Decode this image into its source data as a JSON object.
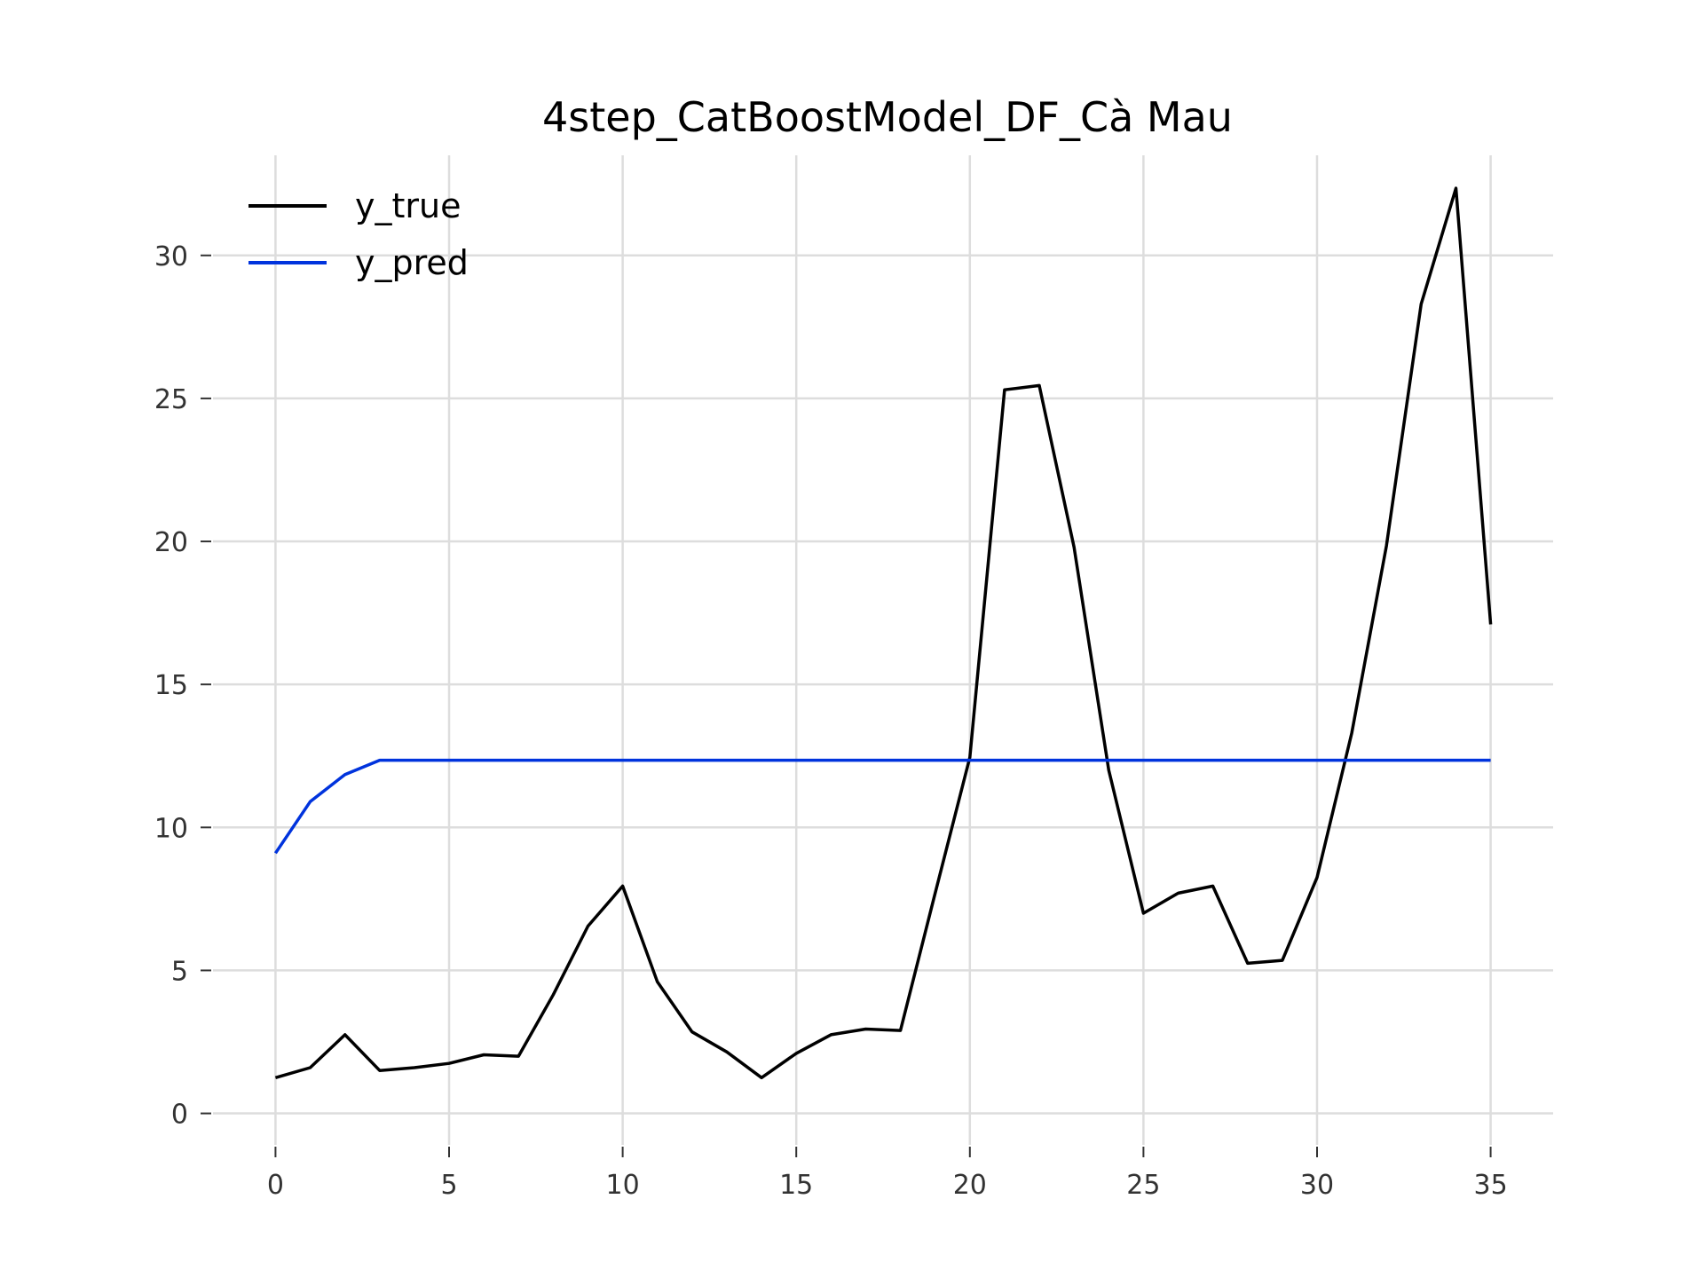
{
  "chart_data": {
    "type": "line",
    "title": "4step_CatBoostModel_DF_Cà Mau",
    "xlabel": "",
    "ylabel": "",
    "xlim": [
      -1.8,
      36.8
    ],
    "ylim": [
      -1.1,
      33.5
    ],
    "xticks": [
      0,
      5,
      10,
      15,
      20,
      25,
      30,
      35
    ],
    "yticks": [
      0,
      5,
      10,
      15,
      20,
      25,
      30
    ],
    "grid": true,
    "legend_position": "top-left",
    "x": [
      0,
      1,
      2,
      3,
      4,
      5,
      6,
      7,
      8,
      9,
      10,
      11,
      12,
      13,
      14,
      15,
      16,
      17,
      18,
      19,
      20,
      21,
      22,
      23,
      24,
      25,
      26,
      27,
      28,
      29,
      30,
      31,
      32,
      33,
      34,
      35
    ],
    "series": [
      {
        "name": "y_true",
        "color": "#000000",
        "values": [
          1.25,
          1.6,
          2.75,
          1.5,
          1.6,
          1.75,
          2.05,
          2.0,
          4.15,
          6.55,
          7.95,
          4.6,
          2.85,
          2.15,
          1.25,
          2.1,
          2.75,
          2.95,
          2.9,
          7.7,
          12.45,
          25.3,
          25.45,
          19.8,
          12.0,
          7.0,
          7.7,
          7.95,
          5.25,
          5.35,
          8.25,
          13.3,
          19.85,
          28.3,
          32.35,
          17.1
        ]
      },
      {
        "name": "y_pred",
        "color": "#0033dd",
        "values": [
          9.1,
          10.9,
          11.85,
          12.35,
          12.35,
          12.35,
          12.35,
          12.35,
          12.35,
          12.35,
          12.35,
          12.35,
          12.35,
          12.35,
          12.35,
          12.35,
          12.35,
          12.35,
          12.35,
          12.35,
          12.35,
          12.35,
          12.35,
          12.35,
          12.35,
          12.35,
          12.35,
          12.35,
          12.35,
          12.35,
          12.35,
          12.35,
          12.35,
          12.35,
          12.35,
          12.35
        ]
      }
    ]
  }
}
